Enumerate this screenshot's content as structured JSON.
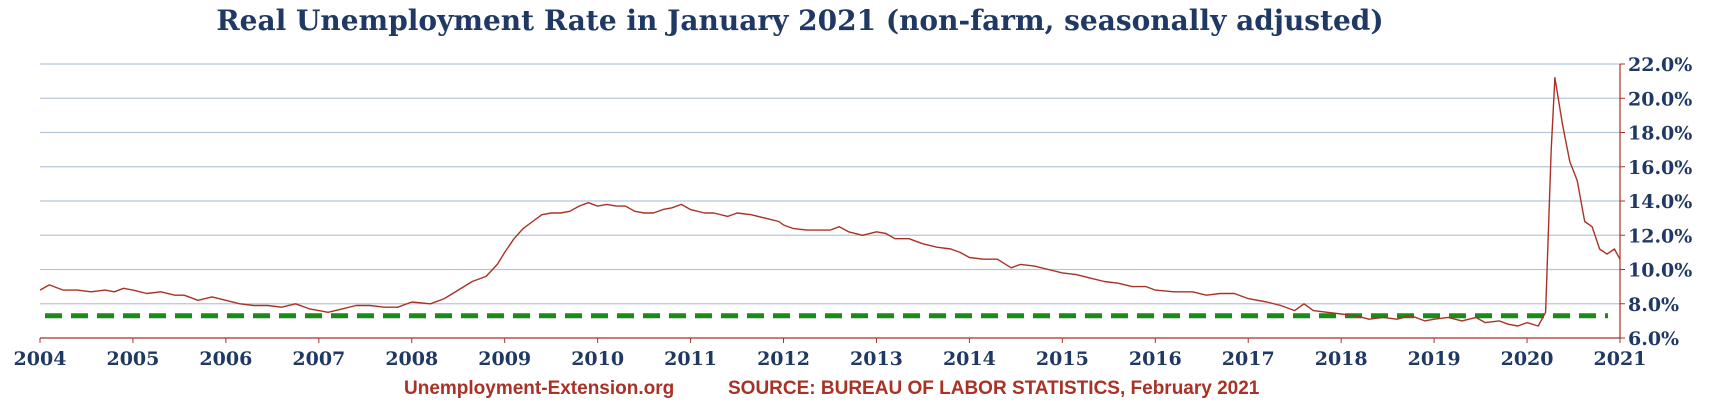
{
  "title": "Real Unemployment Rate in January 2021 (non-farm, seasonally adjusted)",
  "footer": {
    "site": "Unemployment-Extension.org",
    "source": "SOURCE: BUREAU OF LABOR STATISTICS, February 2021"
  },
  "colors": {
    "title": "#1f3864",
    "series": "#a93226",
    "reference_line": "#1a8a1a",
    "grid": "#b7c6d9",
    "axis": "#a93226",
    "tick_labels": "#1f3864",
    "footer": "#a93226"
  },
  "chart_data": {
    "type": "line",
    "title": "Real Unemployment Rate in January 2021 (non-farm, seasonally adjusted)",
    "xlabel": "",
    "ylabel": "",
    "xlim": [
      2004,
      2021
    ],
    "ylim": [
      6,
      22
    ],
    "x_ticks": [
      "2004",
      "2005",
      "2006",
      "2007",
      "2008",
      "2009",
      "2010",
      "2011",
      "2012",
      "2013",
      "2014",
      "2015",
      "2016",
      "2017",
      "2018",
      "2019",
      "2020",
      "2021"
    ],
    "y_ticks": [
      "6.0%",
      "8.0%",
      "10.0%",
      "12.0%",
      "14.0%",
      "16.0%",
      "18.0%",
      "20.0%",
      "22.0%"
    ],
    "y_axis_position": "right",
    "grid": true,
    "legend": "none",
    "reference_line": {
      "y": 7.3,
      "style": "dashed"
    },
    "series": [
      {
        "points": [
          [
            2004.0,
            8.8
          ],
          [
            2004.1,
            9.1
          ],
          [
            2004.25,
            8.8
          ],
          [
            2004.4,
            8.8
          ],
          [
            2004.55,
            8.7
          ],
          [
            2004.7,
            8.8
          ],
          [
            2004.8,
            8.7
          ],
          [
            2004.9,
            8.9
          ],
          [
            2005.0,
            8.8
          ],
          [
            2005.15,
            8.6
          ],
          [
            2005.3,
            8.7
          ],
          [
            2005.45,
            8.5
          ],
          [
            2005.55,
            8.5
          ],
          [
            2005.7,
            8.2
          ],
          [
            2005.85,
            8.4
          ],
          [
            2006.0,
            8.2
          ],
          [
            2006.15,
            8.0
          ],
          [
            2006.3,
            7.9
          ],
          [
            2006.45,
            7.9
          ],
          [
            2006.6,
            7.8
          ],
          [
            2006.75,
            8.0
          ],
          [
            2006.9,
            7.7
          ],
          [
            2007.0,
            7.6
          ],
          [
            2007.1,
            7.5
          ],
          [
            2007.25,
            7.7
          ],
          [
            2007.4,
            7.9
          ],
          [
            2007.55,
            7.9
          ],
          [
            2007.7,
            7.8
          ],
          [
            2007.85,
            7.8
          ],
          [
            2008.0,
            8.1
          ],
          [
            2008.2,
            8.0
          ],
          [
            2008.35,
            8.3
          ],
          [
            2008.5,
            8.8
          ],
          [
            2008.65,
            9.3
          ],
          [
            2008.8,
            9.6
          ],
          [
            2008.92,
            10.3
          ],
          [
            2009.0,
            11.0
          ],
          [
            2009.1,
            11.8
          ],
          [
            2009.2,
            12.4
          ],
          [
            2009.3,
            12.8
          ],
          [
            2009.4,
            13.2
          ],
          [
            2009.5,
            13.3
          ],
          [
            2009.6,
            13.3
          ],
          [
            2009.7,
            13.4
          ],
          [
            2009.8,
            13.7
          ],
          [
            2009.9,
            13.9
          ],
          [
            2010.0,
            13.7
          ],
          [
            2010.1,
            13.8
          ],
          [
            2010.2,
            13.7
          ],
          [
            2010.3,
            13.7
          ],
          [
            2010.4,
            13.4
          ],
          [
            2010.5,
            13.3
          ],
          [
            2010.6,
            13.3
          ],
          [
            2010.7,
            13.5
          ],
          [
            2010.8,
            13.6
          ],
          [
            2010.9,
            13.8
          ],
          [
            2011.0,
            13.5
          ],
          [
            2011.15,
            13.3
          ],
          [
            2011.25,
            13.3
          ],
          [
            2011.4,
            13.1
          ],
          [
            2011.5,
            13.3
          ],
          [
            2011.65,
            13.2
          ],
          [
            2011.8,
            13.0
          ],
          [
            2011.95,
            12.8
          ],
          [
            2012.0,
            12.6
          ],
          [
            2012.1,
            12.4
          ],
          [
            2012.25,
            12.3
          ],
          [
            2012.4,
            12.3
          ],
          [
            2012.5,
            12.3
          ],
          [
            2012.6,
            12.5
          ],
          [
            2012.7,
            12.2
          ],
          [
            2012.85,
            12.0
          ],
          [
            2013.0,
            12.2
          ],
          [
            2013.1,
            12.1
          ],
          [
            2013.2,
            11.8
          ],
          [
            2013.35,
            11.8
          ],
          [
            2013.5,
            11.5
          ],
          [
            2013.65,
            11.3
          ],
          [
            2013.8,
            11.2
          ],
          [
            2013.9,
            11.0
          ],
          [
            2014.0,
            10.7
          ],
          [
            2014.15,
            10.6
          ],
          [
            2014.3,
            10.6
          ],
          [
            2014.45,
            10.1
          ],
          [
            2014.55,
            10.3
          ],
          [
            2014.7,
            10.2
          ],
          [
            2014.85,
            10.0
          ],
          [
            2015.0,
            9.8
          ],
          [
            2015.15,
            9.7
          ],
          [
            2015.3,
            9.5
          ],
          [
            2015.45,
            9.3
          ],
          [
            2015.6,
            9.2
          ],
          [
            2015.75,
            9.0
          ],
          [
            2015.9,
            9.0
          ],
          [
            2016.0,
            8.8
          ],
          [
            2016.2,
            8.7
          ],
          [
            2016.4,
            8.7
          ],
          [
            2016.55,
            8.5
          ],
          [
            2016.7,
            8.6
          ],
          [
            2016.85,
            8.6
          ],
          [
            2017.0,
            8.3
          ],
          [
            2017.2,
            8.1
          ],
          [
            2017.35,
            7.9
          ],
          [
            2017.5,
            7.6
          ],
          [
            2017.6,
            8.0
          ],
          [
            2017.7,
            7.6
          ],
          [
            2017.85,
            7.5
          ],
          [
            2018.0,
            7.4
          ],
          [
            2018.15,
            7.3
          ],
          [
            2018.3,
            7.1
          ],
          [
            2018.45,
            7.2
          ],
          [
            2018.6,
            7.1
          ],
          [
            2018.75,
            7.3
          ],
          [
            2018.9,
            7.0
          ],
          [
            2019.0,
            7.1
          ],
          [
            2019.15,
            7.2
          ],
          [
            2019.3,
            7.0
          ],
          [
            2019.45,
            7.2
          ],
          [
            2019.55,
            6.9
          ],
          [
            2019.7,
            7.0
          ],
          [
            2019.8,
            6.8
          ],
          [
            2019.9,
            6.7
          ],
          [
            2020.0,
            6.9
          ],
          [
            2020.12,
            6.7
          ],
          [
            2020.2,
            7.5
          ],
          [
            2020.26,
            17.0
          ],
          [
            2020.3,
            21.2
          ],
          [
            2020.38,
            18.5
          ],
          [
            2020.46,
            16.3
          ],
          [
            2020.54,
            15.2
          ],
          [
            2020.62,
            12.8
          ],
          [
            2020.7,
            12.5
          ],
          [
            2020.78,
            11.2
          ],
          [
            2020.86,
            10.9
          ],
          [
            2020.94,
            11.2
          ],
          [
            2021.0,
            10.6
          ]
        ]
      }
    ]
  }
}
